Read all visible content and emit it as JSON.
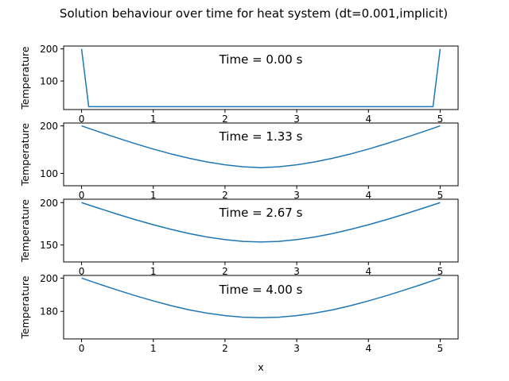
{
  "chart_data": {
    "type": "line",
    "suptitle": "Solution behaviour over time for heat system (dt=0.001,implicit)",
    "xlabel": "x",
    "x_ticks": [
      0,
      1,
      2,
      3,
      4,
      5
    ],
    "line_color": "#1f77b4",
    "panels": [
      {
        "annotation": "Time = 0.00 s",
        "ylabel": "Temperature",
        "ylim": [
          11,
          209
        ],
        "y_ticks": [
          100,
          200
        ],
        "x": [
          0,
          0.1,
          0.2,
          0.5,
          1.0,
          1.5,
          2.0,
          2.5,
          3.0,
          3.5,
          4.0,
          4.5,
          4.8,
          4.9,
          5.0
        ],
        "y": [
          200,
          20,
          20,
          20,
          20,
          20,
          20,
          20,
          20,
          20,
          20,
          20,
          20,
          20,
          200
        ]
      },
      {
        "annotation": "Time = 1.33 s",
        "ylabel": "Temperature",
        "ylim": [
          74,
          206
        ],
        "y_ticks": [
          100,
          200
        ],
        "x": [
          0,
          0.25,
          0.5,
          0.75,
          1.0,
          1.25,
          1.5,
          1.75,
          2.0,
          2.25,
          2.5,
          2.75,
          3.0,
          3.25,
          3.5,
          3.75,
          4.0,
          4.25,
          4.5,
          4.75,
          5.0
        ],
        "y": [
          200,
          187.1,
          174.6,
          162.5,
          151.2,
          140.9,
          131.8,
          124.1,
          118.0,
          113.8,
          112.0,
          113.8,
          118.0,
          124.1,
          131.8,
          140.9,
          151.2,
          162.5,
          174.6,
          187.1,
          200
        ]
      },
      {
        "annotation": "Time = 2.67 s",
        "ylabel": "Temperature",
        "ylim": [
          130,
          204
        ],
        "y_ticks": [
          150,
          200
        ],
        "x": [
          0,
          0.25,
          0.5,
          0.75,
          1.0,
          1.25,
          1.5,
          1.75,
          2.0,
          2.25,
          2.5,
          2.75,
          3.0,
          3.25,
          3.5,
          3.75,
          4.0,
          4.25,
          4.5,
          4.75,
          5.0
        ],
        "y": [
          200,
          193.1,
          186.3,
          179.9,
          173.9,
          168.4,
          163.5,
          159.4,
          156.3,
          154.2,
          153.5,
          154.2,
          156.3,
          159.4,
          163.5,
          168.4,
          173.9,
          179.9,
          186.3,
          193.1,
          200
        ]
      },
      {
        "annotation": "Time = 4.00 s",
        "ylabel": "Temperature",
        "ylim": [
          163.4,
          201.6
        ],
        "y_ticks": [
          180,
          200
        ],
        "x": [
          0,
          0.25,
          0.5,
          0.75,
          1.0,
          1.25,
          1.5,
          1.75,
          2.0,
          2.25,
          2.5,
          2.75,
          3.0,
          3.25,
          3.5,
          3.75,
          4.0,
          4.25,
          4.5,
          4.75,
          5.0
        ],
        "y": [
          200,
          196.3,
          192.8,
          189.4,
          186.3,
          183.4,
          180.9,
          178.9,
          177.4,
          176.5,
          176.2,
          176.5,
          177.4,
          178.9,
          180.9,
          183.4,
          186.3,
          189.4,
          192.8,
          196.3,
          200
        ]
      }
    ]
  }
}
